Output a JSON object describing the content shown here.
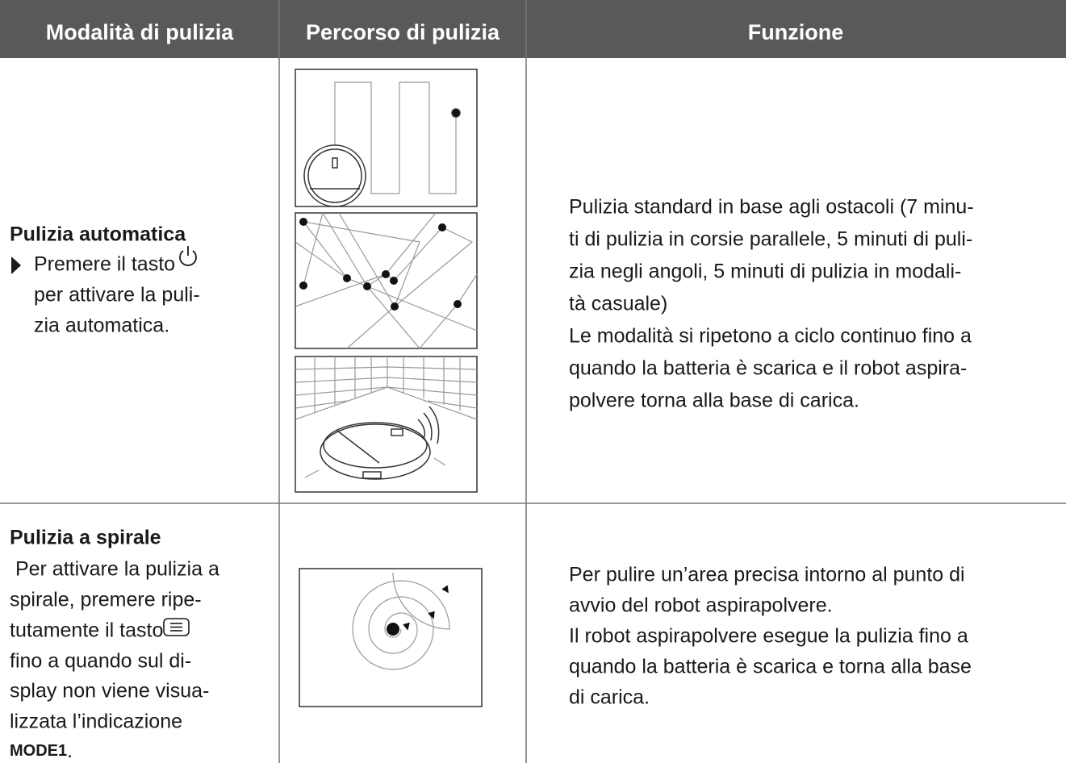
{
  "table": {
    "header": [
      "Modalità di pulizia",
      "Percorso di pulizia",
      "Funzione"
    ],
    "rows": [
      {
        "mode_title": "Pulizia automatica",
        "mode_lines": [
          "Premere il tasto",
          "per attivare la puli-",
          "zia automatica."
        ],
        "function_lines": [
          "Pulizia standard in base agli ostacoli (7 minu-",
          "ti di pulizia in corsie parallele, 5 minuti di puli-",
          "zia negli angoli, 5 minuti di pulizia in modali-",
          "tà casuale)",
          "Le modalità si ripetono a ciclo continuo fino a",
          "quando la batteria è scarica e il robot aspira-",
          "polvere torna alla base di carica."
        ]
      },
      {
        "mode_title": "Pulizia a spirale",
        "mode_lines": [
          " Per attivare la pulizia a",
          "spirale, premere ripe-",
          "tutamente il tasto",
          "fino a quando sul di-",
          "splay non viene visua-",
          "lizzata l’indicazione"
        ],
        "mode_code": "MODE1",
        "mode_code_suffix": ".",
        "function_lines": [
          "Per pulire un’area precisa intorno al punto di",
          "avvio del robot aspirapolvere.",
          "Il robot aspirapolvere esegue la pulizia fino a",
          "quando la batteria è scarica e torna alla base",
          "di carica."
        ]
      }
    ]
  }
}
